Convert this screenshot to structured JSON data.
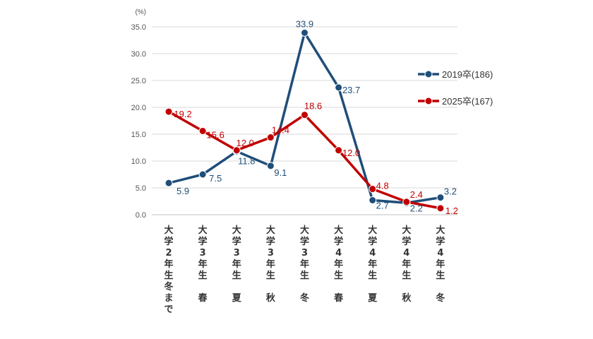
{
  "chart_data": {
    "type": "line",
    "y_unit": "(%)",
    "ylim": [
      0,
      35
    ],
    "y_ticks": [
      "0.0",
      "5.0",
      "10.0",
      "15.0",
      "20.0",
      "25.0",
      "30.0",
      "35.0"
    ],
    "grid": true,
    "legend_position": "right",
    "categories": [
      [
        "大",
        "学",
        "2",
        "年",
        "生",
        "冬",
        "ま",
        "で"
      ],
      [
        "大",
        "学",
        "3",
        "年",
        "生",
        "",
        "春"
      ],
      [
        "大",
        "学",
        "3",
        "年",
        "生",
        "",
        "夏"
      ],
      [
        "大",
        "学",
        "3",
        "年",
        "生",
        "",
        "秋"
      ],
      [
        "大",
        "学",
        "3",
        "年",
        "生",
        "",
        "冬"
      ],
      [
        "大",
        "学",
        "4",
        "年",
        "生",
        "",
        "春"
      ],
      [
        "大",
        "学",
        "4",
        "年",
        "生",
        "",
        "夏"
      ],
      [
        "大",
        "学",
        "4",
        "年",
        "生",
        "",
        "秋"
      ],
      [
        "大",
        "学",
        "4",
        "年",
        "生",
        "",
        "冬"
      ]
    ],
    "series": [
      {
        "name": "2019卒(186)",
        "color": "#1F4E79",
        "values": [
          5.9,
          7.5,
          11.8,
          9.1,
          33.9,
          23.7,
          2.7,
          2.2,
          3.2
        ],
        "labels": [
          "5.9",
          "7.5",
          "11.8",
          "9.1",
          "33.9",
          "23.7",
          "2.7",
          "2.2",
          "3.2"
        ]
      },
      {
        "name": "2025卒(167)",
        "color": "#C00000",
        "values": [
          19.2,
          15.6,
          12.0,
          14.4,
          18.6,
          12.0,
          4.8,
          2.4,
          1.2
        ],
        "labels": [
          "19.2",
          "15.6",
          "12.0",
          "14.4",
          "18.6",
          "12.0",
          "4.8",
          "2.4",
          "1.2"
        ]
      }
    ]
  }
}
